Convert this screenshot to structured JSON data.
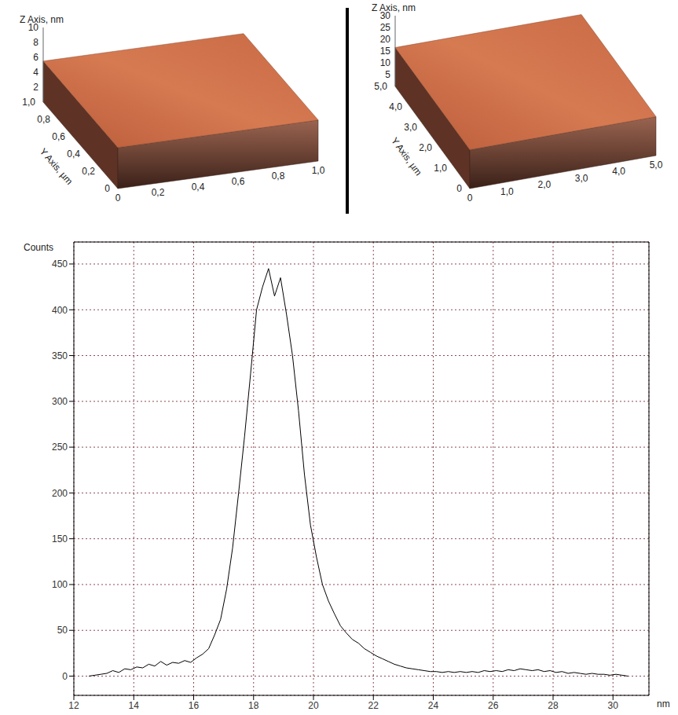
{
  "surface_images": [
    {
      "z_axis_title": "Z Axis, nm",
      "y_axis_title": "Y Axis, µm",
      "xlim": [
        0,
        1
      ],
      "xticks": [
        0,
        {
          "value": 0.2,
          "label": "0,2"
        },
        {
          "value": 0.4,
          "label": "0,4"
        },
        {
          "value": 0.6,
          "label": "0,6"
        },
        {
          "value": 0.8,
          "label": "0,8"
        },
        {
          "value": 1,
          "label": "1,0"
        }
      ],
      "ylim": [
        0,
        1
      ],
      "yticks": [
        0,
        {
          "value": 0.2,
          "label": "0,2"
        },
        {
          "value": 0.4,
          "label": "0,4"
        },
        {
          "value": 0.6,
          "label": "0,6"
        },
        {
          "value": 0.8,
          "label": "0,8"
        },
        {
          "value": 1,
          "label": "1,0"
        }
      ],
      "zlim": [
        0,
        10
      ],
      "zticks": [
        2,
        4,
        6,
        8,
        10
      ]
    },
    {
      "z_axis_title": "Z Axis, nm",
      "y_axis_title": "Y Axis, µm",
      "xlim": [
        0,
        5
      ],
      "xticks": [
        0,
        {
          "value": 1,
          "label": "1,0"
        },
        {
          "value": 2,
          "label": "2,0"
        },
        {
          "value": 3,
          "label": "3,0"
        },
        {
          "value": 4,
          "label": "4,0"
        },
        {
          "value": 5,
          "label": "5,0"
        }
      ],
      "ylim": [
        0,
        5
      ],
      "yticks": [
        0,
        {
          "value": 1,
          "label": "1,0"
        },
        {
          "value": 2,
          "label": "2,0"
        },
        {
          "value": 3,
          "label": "3,0"
        },
        {
          "value": 4,
          "label": "4,0"
        },
        {
          "value": 5,
          "label": "5,0"
        }
      ],
      "zlim": [
        0,
        30
      ],
      "zticks": [
        5,
        10,
        15,
        20,
        25,
        30
      ]
    }
  ],
  "chart_data": {
    "type": "line",
    "y_label": "Counts",
    "x_label": "nm",
    "color": "#000000",
    "grid": true,
    "x": [
      12.5,
      12.7,
      12.9,
      13.1,
      13.3,
      13.5,
      13.7,
      13.9,
      14.1,
      14.3,
      14.5,
      14.7,
      14.9,
      15.1,
      15.3,
      15.5,
      15.7,
      15.9,
      16.1,
      16.3,
      16.5,
      16.7,
      16.9,
      17.1,
      17.3,
      17.5,
      17.7,
      17.9,
      18.1,
      18.3,
      18.5,
      18.7,
      18.9,
      19.1,
      19.3,
      19.5,
      19.7,
      19.9,
      20.1,
      20.3,
      20.5,
      20.7,
      20.9,
      21.1,
      21.3,
      21.5,
      21.7,
      21.9,
      22.1,
      22.3,
      22.5,
      22.7,
      22.9,
      23.1,
      23.3,
      23.5,
      23.7,
      23.9,
      24.1,
      24.3,
      24.5,
      24.7,
      24.9,
      25.1,
      25.3,
      25.5,
      25.7,
      25.9,
      26.1,
      26.3,
      26.5,
      26.7,
      26.9,
      27.1,
      27.3,
      27.5,
      27.7,
      27.9,
      28.1,
      28.3,
      28.5,
      28.7,
      28.9,
      29.1,
      29.3,
      29.5,
      29.7,
      29.9,
      30.1,
      30.3,
      30.5
    ],
    "values": [
      0,
      1,
      2,
      3,
      6,
      4,
      8,
      7,
      10,
      9,
      13,
      11,
      16,
      12,
      15,
      14,
      17,
      15,
      20,
      24,
      30,
      45,
      62,
      95,
      140,
      200,
      262,
      330,
      400,
      425,
      445,
      415,
      435,
      395,
      350,
      290,
      220,
      165,
      130,
      100,
      82,
      68,
      55,
      47,
      40,
      36,
      30,
      26,
      22,
      19,
      16,
      13,
      11,
      9,
      8,
      7,
      6,
      5,
      5,
      4,
      5,
      4,
      5,
      4,
      5,
      4,
      6,
      5,
      6,
      5,
      7,
      6,
      8,
      7,
      6,
      7,
      5,
      6,
      4,
      5,
      3,
      4,
      3,
      2,
      3,
      2,
      2,
      1,
      2,
      1,
      0
    ],
    "xlim": [
      12,
      31.2
    ],
    "xticks": [
      12,
      14,
      16,
      18,
      20,
      22,
      24,
      26,
      28,
      30
    ],
    "ylim": [
      -21,
      474
    ],
    "yticks": [
      0,
      50,
      100,
      150,
      200,
      250,
      300,
      350,
      400,
      450
    ]
  }
}
